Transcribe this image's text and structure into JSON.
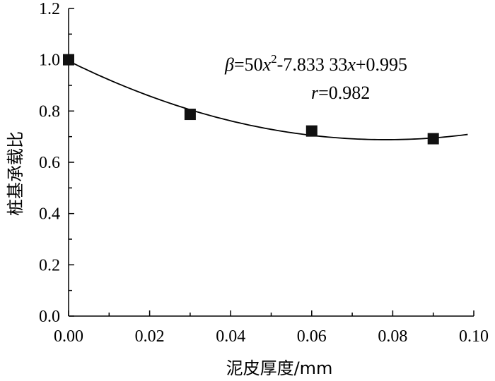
{
  "chart_data": {
    "type": "scatter",
    "xlabel": "泥皮厚度/mm",
    "ylabel": "桩基承载比",
    "xlim": [
      0.0,
      0.1
    ],
    "ylim": [
      0.0,
      1.2
    ],
    "xticks": [
      "0.00",
      "0.02",
      "0.04",
      "0.06",
      "0.08",
      "0.10"
    ],
    "yticks": [
      "0.0",
      "0.2",
      "0.4",
      "0.6",
      "0.8",
      "1.0",
      "1.2"
    ],
    "grid": false,
    "series": [
      {
        "marker": "square",
        "x": [
          0.0,
          0.03,
          0.06,
          0.09
        ],
        "y": [
          1.0,
          0.787,
          0.722,
          0.692
        ]
      }
    ],
    "fit": {
      "a": 50,
      "b": -7.83333,
      "c": 0.995,
      "x_end": 0.0985
    },
    "annotations": {
      "equation": {
        "beta": "β",
        "eq1": "=50",
        "x1": "x",
        "sup": "2",
        "eq2": "-7.833 33",
        "x2": "x",
        "eq3": "+0.995"
      },
      "r": {
        "r": "r",
        "val": "=0.982"
      }
    }
  }
}
